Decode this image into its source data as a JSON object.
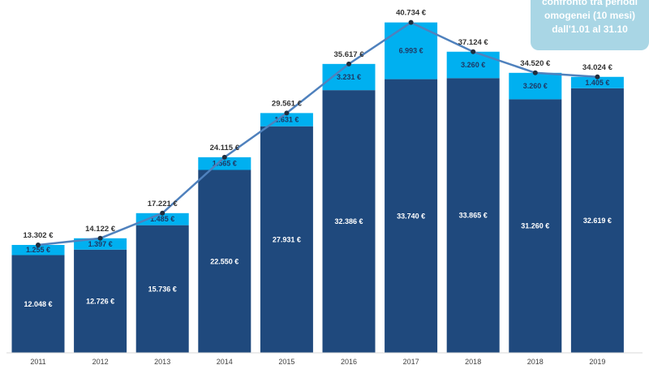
{
  "chart_data": {
    "type": "bar",
    "stacked": true,
    "categories": [
      "2011",
      "2012",
      "2013",
      "2014",
      "2015",
      "2016",
      "2017",
      "2018",
      "2018",
      "2019"
    ],
    "series": [
      {
        "values": [
          12048,
          12726,
          15736,
          22550,
          27931,
          32386,
          33740,
          33865,
          31260,
          32619
        ],
        "color": "#1f497d"
      },
      {
        "values": [
          1255,
          1397,
          1485,
          1565,
          1631,
          3231,
          6993,
          3260,
          3260,
          1405
        ],
        "color": "#00b0f0"
      }
    ],
    "line": {
      "values": [
        13302,
        14122,
        17221,
        24115,
        29561,
        35617,
        40734,
        37124,
        34520,
        34024
      ],
      "color": "#4f81bd"
    },
    "labels": {
      "bottom": [
        "12.048 €",
        "12.726 €",
        "15.736 €",
        "22.550 €",
        "27.931 €",
        "32.386 €",
        "33.740 €",
        "33.865 €",
        "31.260 €",
        "32.619 €"
      ],
      "top": [
        "1.255 €",
        "1.397 €",
        "1.485 €",
        "1.565 €",
        "1.631 €",
        "3.231 €",
        "6.993 €",
        "3.260 €",
        "3.260 €",
        "1.405 €"
      ],
      "total": [
        "13.302 €",
        "14.122 €",
        "17.221 €",
        "24.115 €",
        "29.561 €",
        "35.617 €",
        "40.734 €",
        "37.124 €",
        "34.520 €",
        "34.024 €"
      ]
    },
    "ylim": [
      0,
      41500
    ],
    "grid": false,
    "legend": "none"
  },
  "note": {
    "lines": [
      "confronto tra periodi",
      "omogenei (10 mesi)",
      "dall'1.01 al 31.10"
    ]
  }
}
